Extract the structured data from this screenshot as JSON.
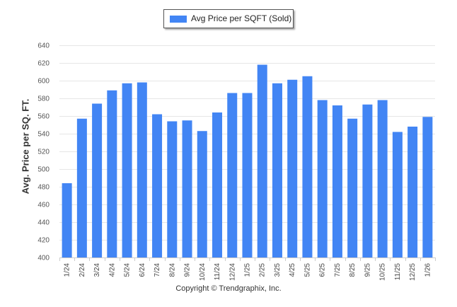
{
  "chart_data": {
    "type": "bar",
    "title": "",
    "xlabel": "",
    "ylabel": "Avg. Price per SQ. FT.",
    "ylim": [
      400,
      640
    ],
    "yticks": [
      400,
      420,
      440,
      460,
      480,
      500,
      520,
      540,
      560,
      580,
      600,
      620,
      640
    ],
    "grid": true,
    "legend_position": "top-center",
    "categories": [
      "1/24",
      "2/24",
      "3/24",
      "4/24",
      "5/24",
      "6/24",
      "7/24",
      "8/24",
      "9/24",
      "10/24",
      "11/24",
      "12/24",
      "1/25",
      "2/25",
      "3/25",
      "4/25",
      "5/25",
      "6/25",
      "7/25",
      "8/25",
      "9/25",
      "10/25",
      "11/25",
      "12/25",
      "1/26"
    ],
    "series": [
      {
        "name": "Avg Price per SQFT (Sold)",
        "color": "#4285f4",
        "values": [
          484,
          557,
          574,
          589,
          597,
          598,
          562,
          554,
          555,
          543,
          564,
          586,
          586,
          618,
          597,
          601,
          605,
          578,
          572,
          557,
          573,
          578,
          542,
          548,
          559
        ]
      }
    ]
  },
  "legend": {
    "label": "Avg Price per SQFT (Sold)",
    "color": "#4285f4"
  },
  "footer": {
    "copyright": "Copyright © Trendgraphix, Inc."
  }
}
